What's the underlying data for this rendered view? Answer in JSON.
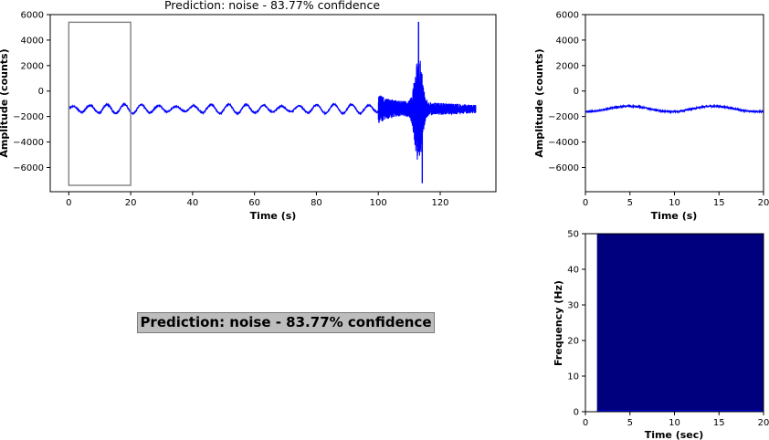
{
  "chart_data": [
    {
      "type": "line",
      "title": "Prediction: noise - 83.77% confidence",
      "xlabel": "Time (s)",
      "ylabel": "Amplitude (counts)",
      "xlim": [
        -6,
        138
      ],
      "ylim": [
        -7900,
        6000
      ],
      "xticks": [
        "0",
        "20",
        "40",
        "60",
        "80",
        "100",
        "120"
      ],
      "yticks": [
        "6000",
        "4000",
        "2000",
        "0",
        "−2000",
        "−4000",
        "−6000"
      ],
      "line_color": "#0000ff",
      "baseline": -1400,
      "duration": 131.5,
      "event_onset": 100,
      "event_peak": {
        "t": 113,
        "max": 5400,
        "min": -7200
      },
      "window_box": {
        "x": [
          0,
          20
        ],
        "y": [
          -7400,
          5400
        ],
        "color": "#808080"
      }
    },
    {
      "type": "line",
      "xlabel": "Time (s)",
      "ylabel": "Amplitude (counts)",
      "xlim": [
        0,
        20
      ],
      "ylim": [
        -7900,
        6000
      ],
      "xticks": [
        "0",
        "5",
        "10",
        "15",
        "20"
      ],
      "yticks": [
        "6000",
        "4000",
        "2000",
        "0",
        "−2000",
        "−4000",
        "−6000"
      ],
      "line_color": "#0000ff",
      "baseline": -1400
    },
    {
      "type": "heatmap",
      "xlabel": "Time (sec)",
      "ylabel": "Frequency (Hz)",
      "xlim": [
        0,
        20
      ],
      "ylim": [
        0,
        50
      ],
      "xticks": [
        "0",
        "5",
        "10",
        "15",
        "20"
      ],
      "yticks": [
        "0",
        "10",
        "20",
        "30",
        "40",
        "50"
      ],
      "data_start": 1.3,
      "fill_color": "#00007f",
      "low_freq_color": "#0000cc"
    }
  ],
  "prediction_label": "Prediction: noise - 83.77% confidence"
}
